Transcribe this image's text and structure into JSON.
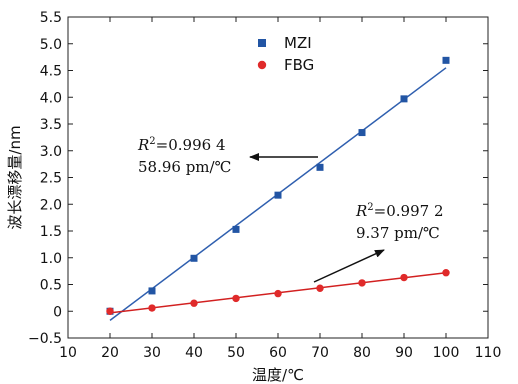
{
  "chart_data": {
    "type": "scatter",
    "xlabel": "温度/℃",
    "ylabel": "波长漂移量/nm",
    "xlim": [
      10,
      110
    ],
    "ylim": [
      -0.5,
      5.5
    ],
    "xticks": [
      "10",
      "20",
      "30",
      "40",
      "50",
      "60",
      "70",
      "80",
      "90",
      "100",
      "110"
    ],
    "yticks": [
      "−0.5",
      "0",
      "0.5",
      "1.0",
      "1.5",
      "2.0",
      "2.5",
      "3.0",
      "3.5",
      "4.0",
      "4.5",
      "5.0",
      "5.5"
    ],
    "legend_position": "top-center",
    "series": [
      {
        "name": "MZI",
        "marker": "square",
        "color": "#2255a4",
        "x": [
          20,
          30,
          40,
          50,
          60,
          70,
          80,
          90,
          100
        ],
        "y": [
          0.0,
          0.38,
          0.99,
          1.53,
          2.17,
          2.69,
          3.34,
          3.97,
          4.69
        ],
        "fit": {
          "x": [
            20,
            100
          ],
          "y": [
            -0.17,
            4.55
          ],
          "color": "#2f5faf"
        }
      },
      {
        "name": "FBG",
        "marker": "circle",
        "color": "#e02a2a",
        "x": [
          20,
          30,
          40,
          50,
          60,
          70,
          80,
          90,
          100
        ],
        "y": [
          0.0,
          0.06,
          0.15,
          0.24,
          0.33,
          0.43,
          0.53,
          0.63,
          0.72
        ],
        "fit": {
          "x": [
            20,
            100
          ],
          "y": [
            -0.03,
            0.72
          ],
          "color": "#d22020"
        }
      }
    ],
    "annotations": [
      {
        "r_label": "R",
        "r_sup": "2",
        "r_value": "=0.996 4",
        "slope": "58.96 pm/℃",
        "arrow": "pointing left"
      },
      {
        "r_label": "R",
        "r_sup": "2",
        "r_value": "=0.997 2",
        "slope": "9.37 pm/℃",
        "arrow": "pointing up-right"
      }
    ]
  }
}
